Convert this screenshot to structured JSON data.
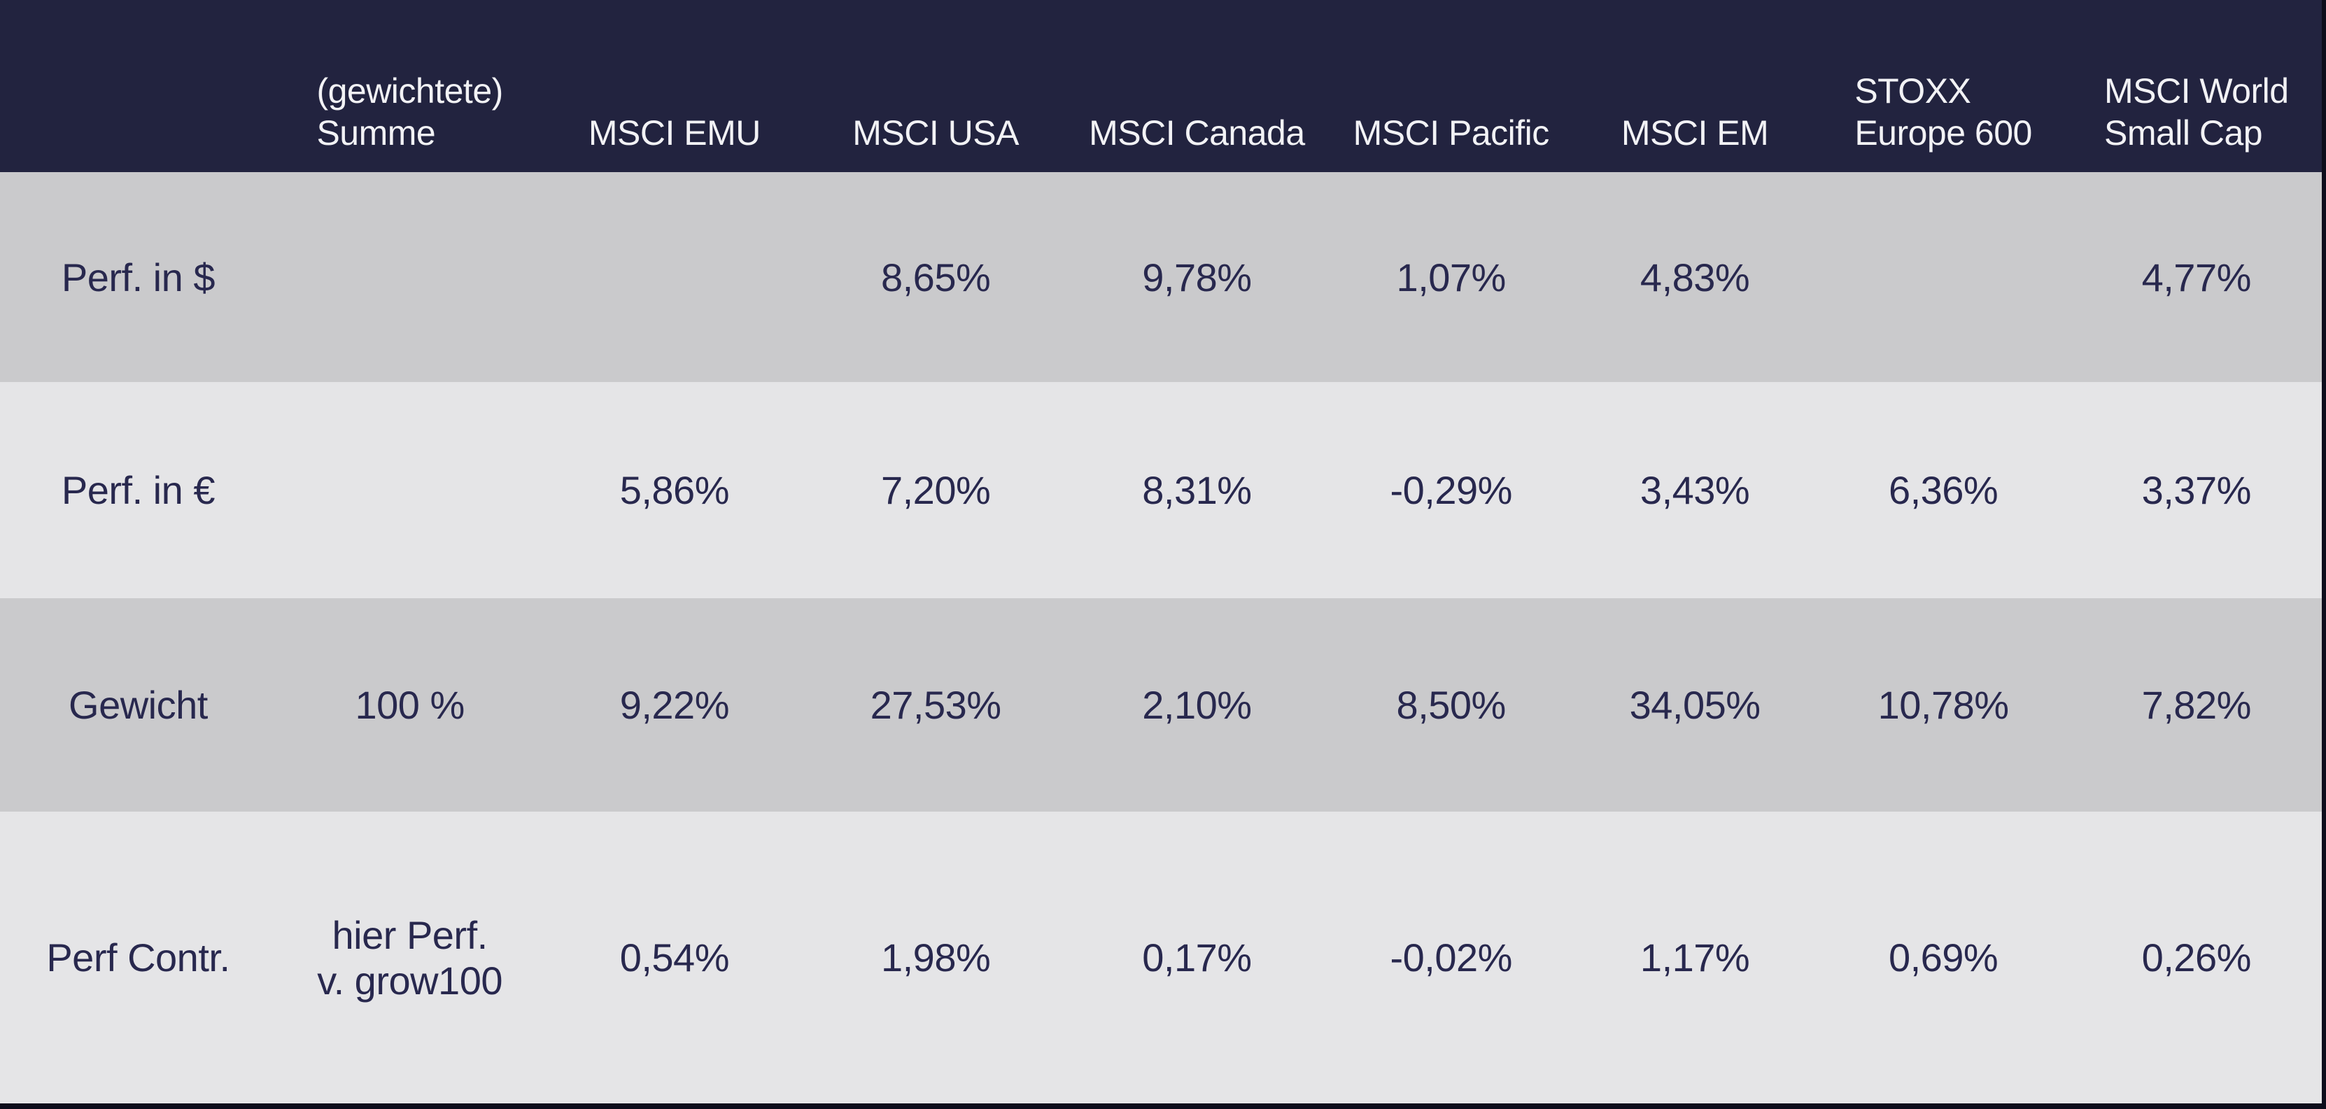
{
  "colors": {
    "header_bg": "#22233F",
    "header_text": "#F2F2F5",
    "row_dark": "#CACACC",
    "row_light": "#E5E5E7",
    "cell_text": "#28284E",
    "edge": "#0D0D1C"
  },
  "chart_data": {
    "type": "table",
    "columns": [
      "",
      "(gewichtete) Summe",
      "MSCI EMU",
      "MSCI USA",
      "MSCI Canada",
      "MSCI Pacific",
      "MSCI EM",
      "STOXX Europe 600",
      "MSCI World Small Cap"
    ],
    "header_lines": [
      [
        ""
      ],
      [
        "(gewichtete)",
        "Summe"
      ],
      [
        "MSCI EMU"
      ],
      [
        "MSCI USA"
      ],
      [
        "MSCI Canada"
      ],
      [
        "MSCI Pacific"
      ],
      [
        "MSCI EM"
      ],
      [
        "STOXX",
        "Europe 600"
      ],
      [
        "MSCI World",
        "Small Cap"
      ]
    ],
    "rows": [
      {
        "label": "Perf. in $",
        "values": [
          "",
          "",
          "8,65%",
          "9,78%",
          "1,07%",
          "4,83%",
          "",
          "4,77%"
        ]
      },
      {
        "label": "Perf. in €",
        "values": [
          "",
          "5,86%",
          "7,20%",
          "8,31%",
          "-0,29%",
          "3,43%",
          "6,36%",
          "3,37%"
        ]
      },
      {
        "label": "Gewicht",
        "values": [
          "100 %",
          "9,22%",
          "27,53%",
          "2,10%",
          "8,50%",
          "34,05%",
          "10,78%",
          "7,82%"
        ]
      },
      {
        "label": "Perf Contr.",
        "values": [
          "hier Perf. v. grow100",
          "0,54%",
          "1,98%",
          "0,17%",
          "-0,02%",
          "1,17%",
          "0,69%",
          "0,26%"
        ],
        "note_lines": [
          "hier Perf.",
          "v. grow100"
        ]
      }
    ]
  }
}
